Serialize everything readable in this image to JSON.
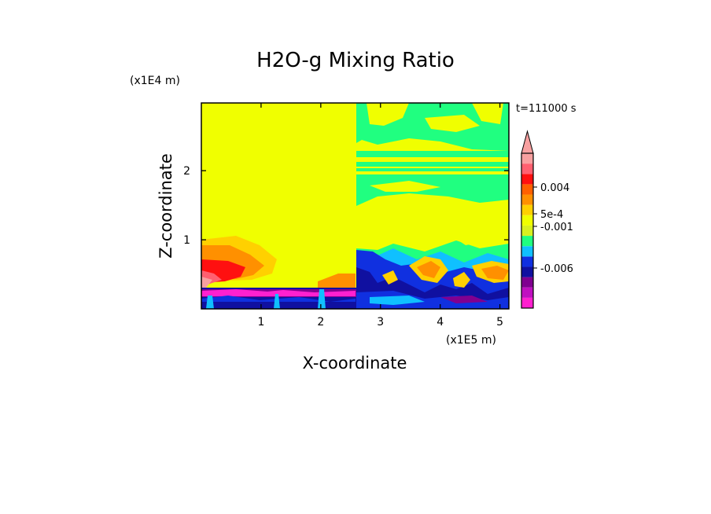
{
  "chart_data": {
    "type": "heatmap",
    "title": "H2O-g Mixing Ratio",
    "xlabel": "X-coordinate",
    "ylabel": "Z-coordinate",
    "x_multiplier": "(x1E5 m)",
    "y_multiplier": "(x1E4 m)",
    "time_label": "t=111000 s",
    "xlim": [
      0,
      5.15
    ],
    "ylim": [
      0,
      2.98
    ],
    "x_ticks": [
      1,
      2,
      3,
      4,
      5
    ],
    "y_ticks": [
      1,
      2
    ],
    "colorbar": {
      "labels": [
        {
          "text": "0.004",
          "value": 0.004
        },
        {
          "text": "5e-4",
          "value": 0.0005
        },
        {
          "text": "-0.001",
          "value": -0.001
        },
        {
          "text": "-0.006",
          "value": -0.006
        }
      ],
      "colors": [
        "#ff20d0",
        "#c010c0",
        "#800090",
        "#1010a0",
        "#1030e0",
        "#10c0ff",
        "#20ff80",
        "#d8f020",
        "#f0ff00",
        "#ffd000",
        "#ff9000",
        "#ff6000",
        "#ff1010",
        "#ff6070",
        "#f8a0a0"
      ]
    },
    "region_colors": {
      "background": "#f0ff00",
      "green": "#20ff80",
      "lime": "#90ff30",
      "cyan": "#10c0ff",
      "blue": "#1030e0",
      "navy": "#1010a0",
      "purple": "#800090",
      "magenta": "#ff20d0",
      "orange": "#ff9000",
      "gold": "#ffd000",
      "red": "#ff1010",
      "salmon": "#ff6070",
      "pink": "#f8a0a0"
    }
  }
}
